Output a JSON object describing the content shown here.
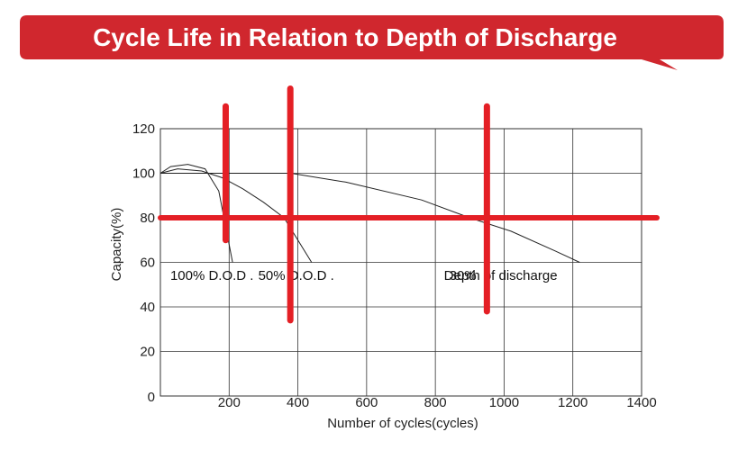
{
  "banner": {
    "title": "Cycle Life in Relation to Depth of Discharge",
    "color": "#d0272e"
  },
  "chart_data": {
    "type": "line",
    "title": "Cycle Life in Relation to Depth of Discharge",
    "xlabel": "Number  of cycles(cycles)",
    "ylabel": "Capacity(%)",
    "xlim": [
      0,
      1400
    ],
    "ylim": [
      0,
      120
    ],
    "xticks": [
      {
        "value": 200,
        "label": "200"
      },
      {
        "value": 400,
        "label": "400"
      },
      {
        "value": 600,
        "label": "600"
      },
      {
        "value": 800,
        "label": "800"
      },
      {
        "value": 1000,
        "label": "1000"
      },
      {
        "value": 1200,
        "label": "1200"
      },
      {
        "value": 1400,
        "label": "1400"
      }
    ],
    "origin_label": "0",
    "yticks": [
      {
        "value": 20,
        "label": "20"
      },
      {
        "value": 40,
        "label": "40"
      },
      {
        "value": 60,
        "label": "60"
      },
      {
        "value": 80,
        "label": "80"
      },
      {
        "value": 100,
        "label": "100"
      },
      {
        "value": 120,
        "label": "120"
      }
    ],
    "grid": true,
    "series": [
      {
        "name": "100% D.O.D.",
        "x": [
          0,
          30,
          80,
          130,
          170,
          210
        ],
        "y": [
          100,
          103,
          104,
          102,
          92,
          60
        ],
        "color": "#222222"
      },
      {
        "name": "50% D.O.D.",
        "x": [
          0,
          50,
          120,
          180,
          240,
          300,
          360,
          440
        ],
        "y": [
          100,
          102,
          101,
          98,
          93,
          87,
          80,
          60
        ],
        "color": "#222222"
      },
      {
        "name": "30% Depth of discharge",
        "x": [
          0,
          200,
          380,
          540,
          760,
          900,
          1020,
          1150,
          1220
        ],
        "y": [
          100,
          100,
          100,
          96,
          88,
          80,
          74,
          65,
          60
        ],
        "color": "#222222"
      }
    ],
    "annotations": [
      {
        "text": "100%  D.O.D .",
        "x": 150,
        "y": 55
      },
      {
        "text": "50%  D.O.D .",
        "x": 395,
        "y": 55
      },
      {
        "text": "30%",
        "x": 880,
        "y": 55
      },
      {
        "text": "Depth of discharge",
        "x": 990,
        "y": 55
      }
    ],
    "highlights": {
      "color": "#e41f25",
      "horizontal": [
        {
          "y": 80
        }
      ],
      "vertical": [
        {
          "x": 190,
          "y1": 70,
          "y2": 130
        },
        {
          "x": 378,
          "y1": 34,
          "y2": 138
        },
        {
          "x": 950,
          "y1": 38,
          "y2": 130
        }
      ]
    }
  }
}
